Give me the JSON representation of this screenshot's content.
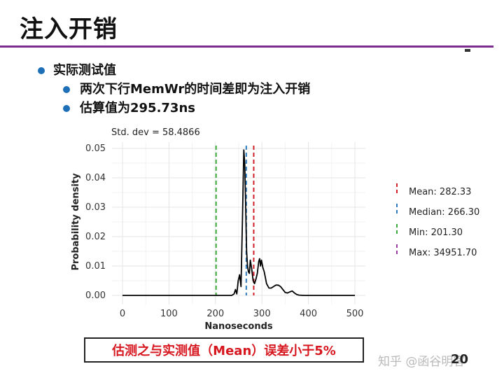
{
  "slide": {
    "title": "注入开销",
    "bullets": [
      {
        "level": 1,
        "text": "实际测试值"
      },
      {
        "level": 2,
        "text": "两次下行MemWr的时间差即为注入开销"
      },
      {
        "level": 2,
        "text": "估算值为295.73ns"
      }
    ],
    "footer_note": "估测之与实测值（Mean）误差小于5%",
    "watermark": "知乎 @函谷明客",
    "page_number": "20",
    "colors": {
      "title_rule": "#7b2d8e",
      "bullet": "#1d6fb8",
      "footer_text": "#d7171f"
    }
  },
  "chart_data": {
    "type": "line",
    "title": "Std. dev = 58.4866",
    "xlabel": "Nanoseconds",
    "ylabel": "Probability density",
    "xlim": [
      0,
      500
    ],
    "ylim": [
      0,
      0.05
    ],
    "xticks": [
      0,
      100,
      200,
      300,
      400,
      500
    ],
    "yticks": [
      0,
      0.01,
      0.02,
      0.03,
      0.04,
      0.05
    ],
    "ytick_labels": [
      "0.00",
      "0.01",
      "0.02",
      "0.03",
      "0.04",
      "0.05"
    ],
    "grid": true,
    "legend_position": "right",
    "series": [
      {
        "color": "#000000",
        "x": [
          0,
          200,
          235,
          240,
          243,
          246,
          249,
          252,
          255,
          258,
          261,
          263,
          265,
          267,
          269,
          271,
          273,
          275,
          278,
          281,
          284,
          287,
          290,
          293,
          295,
          297,
          299,
          302,
          305,
          310,
          315,
          320,
          325,
          330,
          335,
          340,
          345,
          350,
          355,
          360,
          365,
          370,
          375,
          380,
          390,
          400,
          420,
          450,
          500
        ],
        "y": [
          0,
          0,
          0,
          0.0005,
          0.002,
          0.0005,
          0.005,
          0.007,
          0.003,
          0.025,
          0.0495,
          0.045,
          0.03,
          0.015,
          0.01,
          0.008,
          0.0075,
          0.012,
          0.009,
          0.005,
          0.004,
          0.0055,
          0.0075,
          0.0115,
          0.0125,
          0.01,
          0.012,
          0.0095,
          0.008,
          0.004,
          0.0025,
          0.0025,
          0.003,
          0.0035,
          0.0035,
          0.003,
          0.002,
          0.001,
          0.0008,
          0.0012,
          0.0015,
          0.0008,
          0.0003,
          0.0001,
          0,
          0,
          0,
          0,
          0
        ]
      }
    ],
    "vlines": [
      {
        "label": "Mean: 282.33",
        "x": 282.33,
        "color": "#d0212a"
      },
      {
        "label": "Median: 266.30",
        "x": 266.3,
        "color": "#2e7bbd"
      },
      {
        "label": "Min: 201.30",
        "x": 201.3,
        "color": "#3aa93a"
      },
      {
        "label": "Max: 34951.70",
        "x": 34951.7,
        "color": "#9b3aa0"
      }
    ]
  }
}
